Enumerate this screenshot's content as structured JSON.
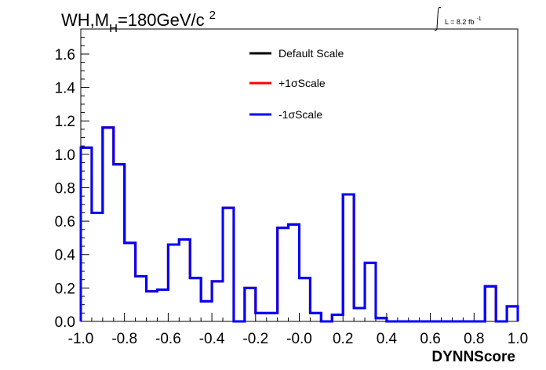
{
  "chart_data": {
    "type": "step-histogram",
    "title": "WH,M",
    "title_sub": "H",
    "title_tail": "=180GeV/c",
    "title_sup": "2",
    "lumi_label": "L = 8.2 fb",
    "lumi_sup": "-1",
    "xlabel": "DYNNScore",
    "ylabel": "",
    "xlim": [
      -1.0,
      1.0
    ],
    "ylim": [
      0.0,
      1.75
    ],
    "x_ticks": [
      "-1.0",
      "-0.8",
      "-0.6",
      "-0.4",
      "-0.2",
      "-0.0",
      "0.2",
      "0.4",
      "0.6",
      "0.8",
      "1.0"
    ],
    "y_ticks": [
      "0.0",
      "0.2",
      "0.4",
      "0.6",
      "0.8",
      "1.0",
      "1.2",
      "1.4",
      "1.6"
    ],
    "bin_edges": [
      -1.0,
      -0.95,
      -0.9,
      -0.85,
      -0.8,
      -0.75,
      -0.7,
      -0.65,
      -0.6,
      -0.55,
      -0.5,
      -0.45,
      -0.4,
      -0.35,
      -0.3,
      -0.25,
      -0.2,
      -0.15,
      -0.1,
      -0.05,
      0.0,
      0.05,
      0.1,
      0.15,
      0.2,
      0.25,
      0.3,
      0.35,
      0.4,
      0.45,
      0.5,
      0.55,
      0.6,
      0.65,
      0.7,
      0.75,
      0.8,
      0.85,
      0.9,
      0.95,
      1.0
    ],
    "series": [
      {
        "name": "Default Scale",
        "color": "#000000",
        "values": [
          1.04,
          0.65,
          1.16,
          0.94,
          0.47,
          0.27,
          0.18,
          0.19,
          0.46,
          0.49,
          0.26,
          0.12,
          0.24,
          0.68,
          0.0,
          0.2,
          0.05,
          0.05,
          0.56,
          0.58,
          0.26,
          0.05,
          0.0,
          0.04,
          0.76,
          0.08,
          0.35,
          0.02,
          0.0,
          0.0,
          0.0,
          0.0,
          0.0,
          0.0,
          0.0,
          0.0,
          0.0,
          0.21,
          0.0,
          0.09
        ]
      },
      {
        "name": "+1σScale",
        "color": "#ff0000",
        "values": [
          1.04,
          0.65,
          1.16,
          0.94,
          0.47,
          0.27,
          0.18,
          0.19,
          0.46,
          0.49,
          0.26,
          0.12,
          0.24,
          0.68,
          0.0,
          0.2,
          0.05,
          0.05,
          0.56,
          0.58,
          0.26,
          0.05,
          0.0,
          0.04,
          0.76,
          0.08,
          0.35,
          0.02,
          0.0,
          0.0,
          0.0,
          0.0,
          0.0,
          0.0,
          0.0,
          0.0,
          0.0,
          0.21,
          0.0,
          0.09
        ]
      },
      {
        "name": "-1σScale",
        "color": "#0000ff",
        "values": [
          1.04,
          0.65,
          1.16,
          0.94,
          0.47,
          0.27,
          0.18,
          0.19,
          0.46,
          0.49,
          0.26,
          0.12,
          0.24,
          0.68,
          0.0,
          0.2,
          0.05,
          0.05,
          0.56,
          0.58,
          0.26,
          0.05,
          0.0,
          0.04,
          0.76,
          0.08,
          0.35,
          0.02,
          0.0,
          0.0,
          0.0,
          0.0,
          0.0,
          0.0,
          0.0,
          0.0,
          0.0,
          0.21,
          0.0,
          0.09
        ]
      }
    ],
    "legend_placement": "top-center",
    "grid": false
  }
}
